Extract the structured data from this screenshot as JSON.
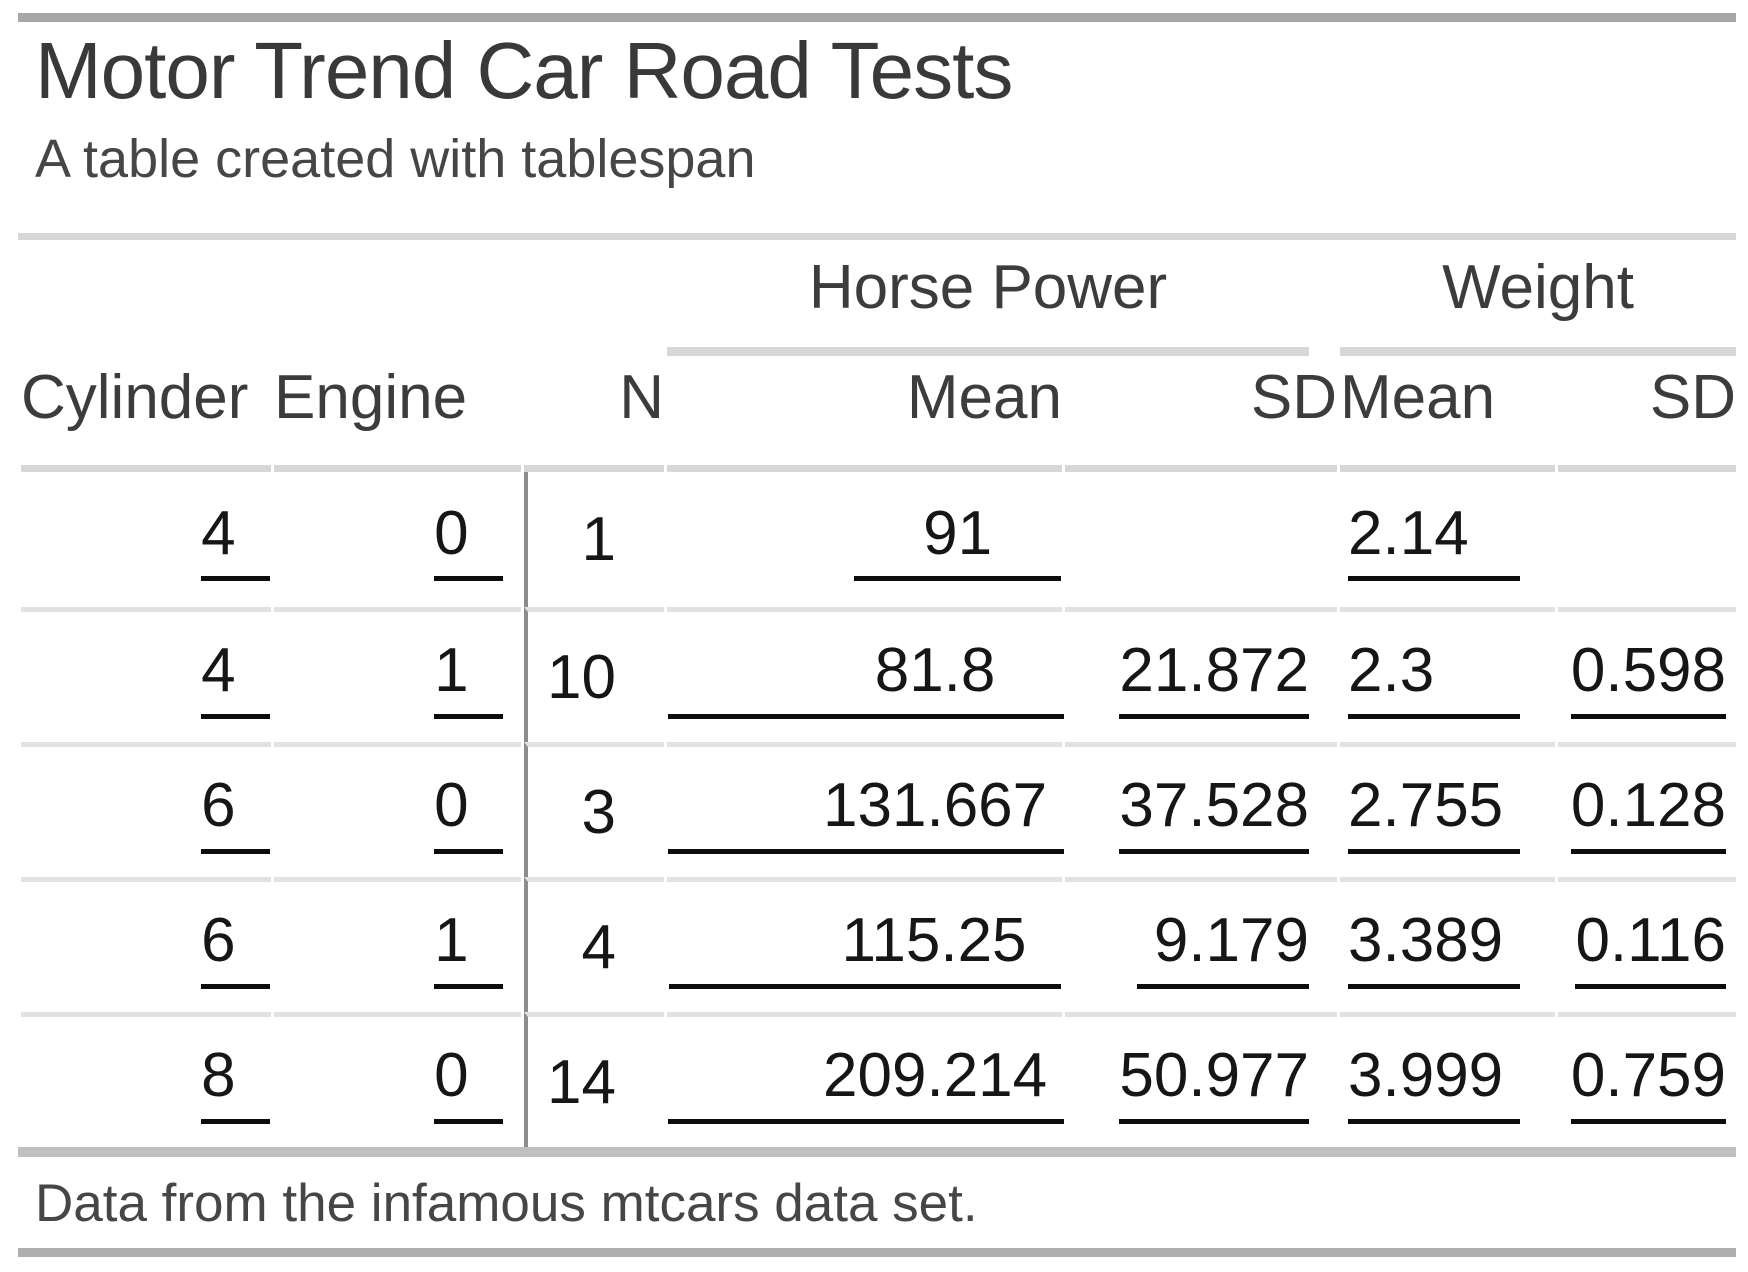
{
  "page": {
    "title": "Motor Trend Car Road Tests",
    "subtitle": "A table created with tablespan",
    "footnote": "Data from the infamous mtcars data set."
  },
  "colors": {
    "top_rule": "#a7a7a7",
    "header_rule": "#d7d7d7",
    "row_separator": "#e2e2e2",
    "table_bottom_rule": "#bfbfbf",
    "page_bottom_rule": "#aeaeae",
    "column_divider": "#8c8c8c",
    "value_underline": "#0d0d0d",
    "text": "#393939"
  },
  "table": {
    "spanners": [
      {
        "label": "Horse Power"
      },
      {
        "label": "Weight"
      }
    ],
    "columns": [
      "Cylinder",
      "Engine",
      "N",
      "Mean",
      "SD",
      "Mean",
      "SD"
    ],
    "rows": [
      {
        "cells": [
          "4  ",
          "0  ",
          "1",
          "    91    ",
          "",
          "2.14   ",
          ""
        ]
      },
      {
        "cells": [
          "4  ",
          "1  ",
          "10",
          "            81.8    ",
          "21.872",
          "2.3     ",
          "0.598"
        ]
      },
      {
        "cells": [
          "6  ",
          "0  ",
          "3",
          "         131.667 ",
          "37.528",
          "2.755 ",
          "0.128"
        ]
      },
      {
        "cells": [
          "6  ",
          "1  ",
          "4",
          "          115.25  ",
          " 9.179",
          "3.389 ",
          "0.116"
        ]
      },
      {
        "cells": [
          "8  ",
          "0  ",
          "14",
          "         209.214 ",
          "50.977",
          "3.999 ",
          "0.759"
        ]
      }
    ]
  },
  "chart_data": {
    "type": "table",
    "title": "Motor Trend Car Road Tests",
    "subtitle": "A table created with tablespan",
    "footnote": "Data from the infamous mtcars data set.",
    "column_groups": [
      {
        "label": "",
        "span": [
          "Cylinder",
          "Engine",
          "N"
        ]
      },
      {
        "label": "Horse Power",
        "span": [
          "Mean",
          "SD"
        ]
      },
      {
        "label": "Weight",
        "span": [
          "Mean",
          "SD"
        ]
      }
    ],
    "columns": [
      "Cylinder",
      "Engine",
      "N",
      "Horse Power Mean",
      "Horse Power SD",
      "Weight Mean",
      "Weight SD"
    ],
    "rows": [
      [
        4,
        0,
        1,
        91,
        null,
        2.14,
        null
      ],
      [
        4,
        1,
        10,
        81.8,
        21.872,
        2.3,
        0.598
      ],
      [
        6,
        0,
        3,
        131.667,
        37.528,
        2.755,
        0.128
      ],
      [
        6,
        1,
        4,
        115.25,
        9.179,
        3.389,
        0.116
      ],
      [
        8,
        0,
        14,
        209.214,
        50.977,
        3.999,
        0.759
      ]
    ]
  }
}
